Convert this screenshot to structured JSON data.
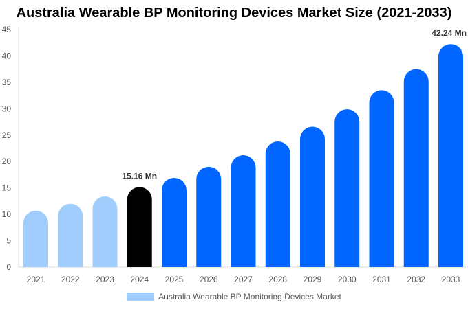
{
  "chart_data": {
    "type": "bar",
    "title": "Australia Wearable BP Monitoring Devices Market Size (2021-2033)",
    "categories": [
      "2021",
      "2022",
      "2023",
      "2024",
      "2025",
      "2026",
      "2027",
      "2028",
      "2029",
      "2030",
      "2031",
      "2032",
      "2033"
    ],
    "series": [
      {
        "name": "Australia Wearable BP Monitoring Devices Market",
        "values": [
          10.7,
          12.0,
          13.4,
          15.16,
          16.9,
          19.0,
          21.2,
          23.8,
          26.6,
          29.9,
          33.5,
          37.5,
          42.24
        ]
      }
    ],
    "data_labels": [
      {
        "category": "2024",
        "text": "15.16 Mn"
      },
      {
        "category": "2033",
        "text": "42.24 Mn"
      }
    ],
    "ylim": [
      0,
      45
    ],
    "yticks": [
      0,
      5,
      10,
      15,
      20,
      25,
      30,
      35,
      40,
      45
    ],
    "xlabel": "",
    "ylabel": "",
    "grid": false,
    "legend": "bottom",
    "colors": {
      "historical": "#a0cdfc",
      "base_year": "#000000",
      "forecast": "#0066ff"
    }
  }
}
